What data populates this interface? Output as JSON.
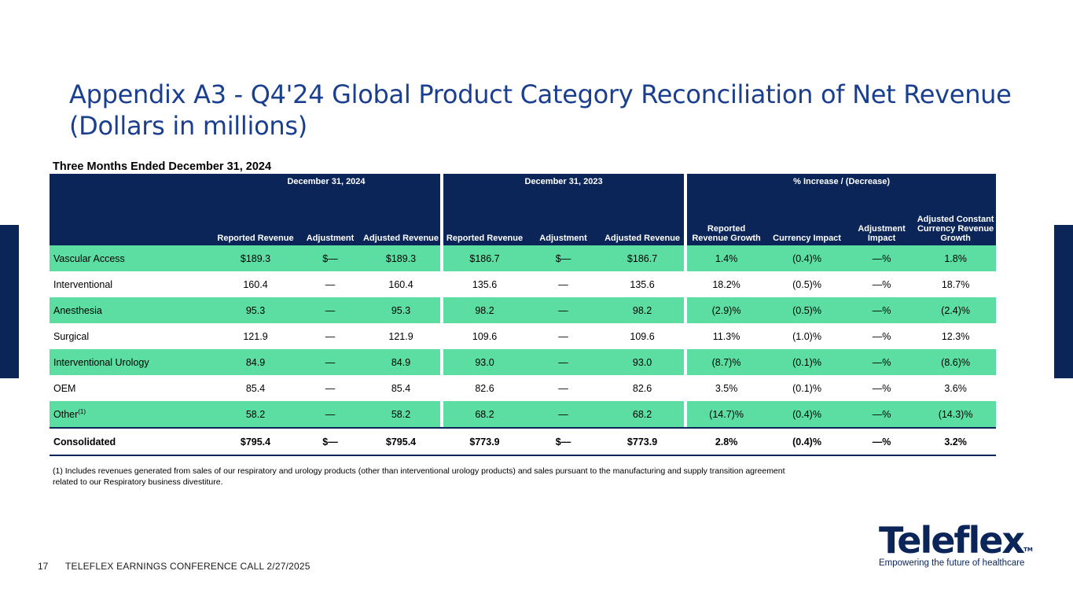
{
  "title": {
    "line1": "Appendix A3 - Q4'24 Global Product Category Reconciliation of Net Revenue",
    "line2": "(Dollars in millions)"
  },
  "table_caption": "Three Months Ended December 31, 2024",
  "groups": {
    "g1": "December 31, 2024",
    "g2": "December 31, 2023",
    "g3": "% Increase / (Decrease)"
  },
  "columns": {
    "rr24": "Reported Revenue",
    "adj24": "Adjustment",
    "ar24": "Adjusted Revenue",
    "rr23": "Reported Revenue",
    "adj23": "Adjustment",
    "ar23": "Adjusted Revenue",
    "rrg": "Reported Revenue Growth",
    "ci": "Currency Impact",
    "ai": "Adjustment Impact",
    "accrg": "Adjusted Constant Currency Revenue Growth"
  },
  "rows": [
    {
      "label": "Vascular Access",
      "sup": "",
      "values": [
        "$189.3",
        "$—",
        "$189.3",
        "$186.7",
        "$—",
        "$186.7",
        "1.4%",
        "(0.4)%",
        "—%",
        "1.8%"
      ]
    },
    {
      "label": "Interventional",
      "sup": "",
      "values": [
        "160.4",
        "—",
        "160.4",
        "135.6",
        "—",
        "135.6",
        "18.2%",
        "(0.5)%",
        "—%",
        "18.7%"
      ]
    },
    {
      "label": "Anesthesia",
      "sup": "",
      "values": [
        "95.3",
        "—",
        "95.3",
        "98.2",
        "—",
        "98.2",
        "(2.9)%",
        "(0.5)%",
        "—%",
        "(2.4)%"
      ]
    },
    {
      "label": "Surgical",
      "sup": "",
      "values": [
        "121.9",
        "—",
        "121.9",
        "109.6",
        "—",
        "109.6",
        "11.3%",
        "(1.0)%",
        "—%",
        "12.3%"
      ]
    },
    {
      "label": "Interventional Urology",
      "sup": "",
      "values": [
        "84.9",
        "—",
        "84.9",
        "93.0",
        "—",
        "93.0",
        "(8.7)%",
        "(0.1)%",
        "—%",
        "(8.6)%"
      ]
    },
    {
      "label": "OEM",
      "sup": "",
      "values": [
        "85.4",
        "—",
        "85.4",
        "82.6",
        "—",
        "82.6",
        "3.5%",
        "(0.1)%",
        "—%",
        "3.6%"
      ]
    },
    {
      "label": "Other",
      "sup": "(1)",
      "values": [
        "58.2",
        "—",
        "58.2",
        "68.2",
        "—",
        "68.2",
        "(14.7)%",
        "(0.4)%",
        "—%",
        "(14.3)%"
      ]
    }
  ],
  "total": {
    "label": "Consolidated",
    "values": [
      "$795.4",
      "$—",
      "$795.4",
      "$773.9",
      "$—",
      "$773.9",
      "2.8%",
      "(0.4)%",
      "—%",
      "3.2%"
    ]
  },
  "footnote": "(1) Includes revenues generated from sales of our respiratory and urology products (other than interventional urology products) and sales pursuant to the manufacturing and supply transition agreement related to our Respiratory business divestiture.",
  "footer": {
    "page": "17",
    "text": "TELEFLEX EARNINGS CONFERENCE CALL 2/27/2025"
  },
  "logo": {
    "wordmark": "Teleflex",
    "tm": "TM",
    "tagline": "Empowering the future of healthcare"
  },
  "colors": {
    "navy": "#0b2559",
    "green": "#5cdea3",
    "title_blue": "#1a3f8f"
  }
}
